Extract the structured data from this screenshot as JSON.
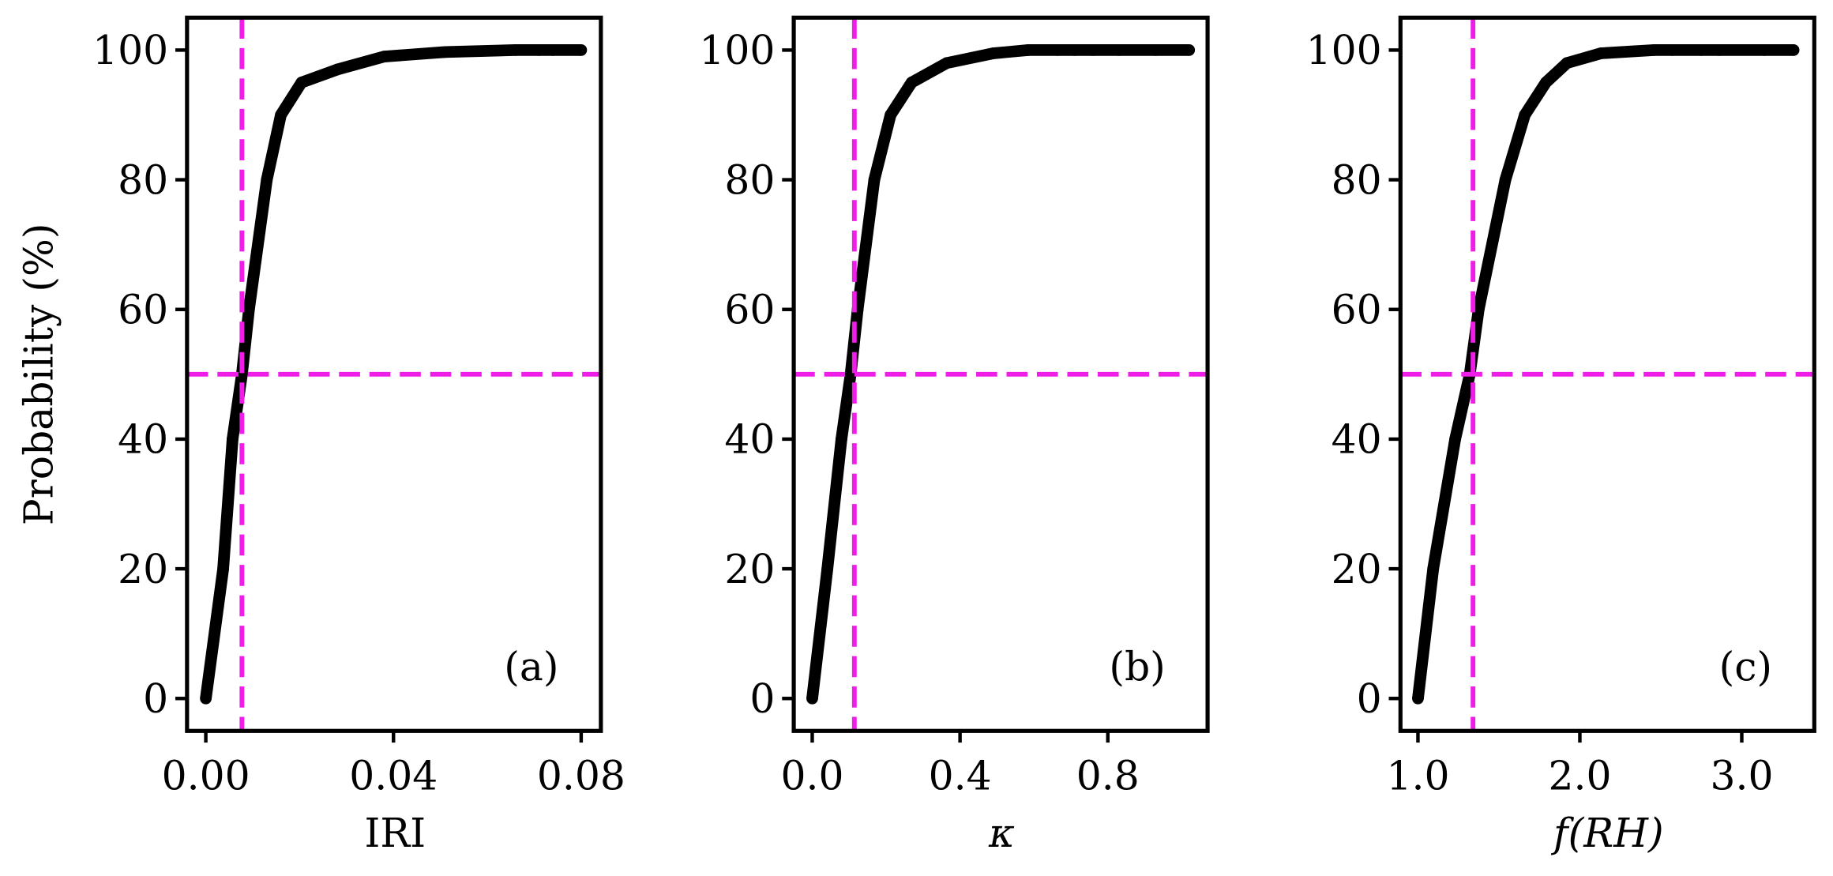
{
  "chart_data": [
    {
      "type": "scatter",
      "xlabel": "IRI",
      "ylabel": "Probability (%)",
      "annotation": "(a)",
      "color": "#000000",
      "ref_color": "#ee1ee8",
      "x": [
        0.0,
        0.0037,
        0.0057,
        0.0077,
        0.0092,
        0.013,
        0.016,
        0.0204,
        0.028,
        0.038,
        0.051,
        0.066,
        0.071,
        0.074,
        0.08
      ],
      "values": [
        0,
        20,
        40,
        50,
        60,
        80,
        90,
        95,
        97,
        99,
        99.7,
        100,
        100,
        100,
        100
      ],
      "xlim": [
        -0.004,
        0.0842
      ],
      "ylim": [
        -5,
        105
      ],
      "xticks": [
        {
          "value": 0,
          "label": "0.00"
        },
        {
          "value": 0.04,
          "label": "0.04"
        },
        {
          "value": 0.08,
          "label": "0.08"
        }
      ],
      "yticks": [
        0,
        20,
        40,
        60,
        80,
        100
      ],
      "reference_lines": {
        "x": 0.0077,
        "y": 50
      }
    },
    {
      "type": "scatter",
      "xlabel": "κ",
      "annotation": "(b)",
      "color": "#000000",
      "ref_color": "#ee1ee8",
      "x": [
        0.0,
        0.041,
        0.079,
        0.104,
        0.123,
        0.168,
        0.212,
        0.269,
        0.364,
        0.49,
        0.585,
        0.664,
        0.71,
        0.76,
        0.83,
        0.93,
        1.02
      ],
      "values": [
        0,
        20,
        40,
        50,
        60,
        80,
        90,
        95,
        98,
        99.5,
        100,
        100,
        100,
        100,
        100,
        100,
        100
      ],
      "xlim": [
        -0.05,
        1.07
      ],
      "ylim": [
        -5,
        105
      ],
      "xticks": [
        {
          "value": 0,
          "label": "0.0"
        },
        0.4,
        0.8
      ],
      "yticks": [
        0,
        20,
        40,
        60,
        80,
        100
      ],
      "reference_lines": {
        "x": 0.114,
        "y": 50
      }
    },
    {
      "type": "scatter",
      "xlabel": "f(RH)",
      "annotation": "(c)",
      "color": "#000000",
      "ref_color": "#ee1ee8",
      "x": [
        1.0,
        1.094,
        1.23,
        1.32,
        1.375,
        1.54,
        1.66,
        1.79,
        1.92,
        2.13,
        2.46,
        2.57,
        2.75,
        2.86,
        3.14,
        3.32
      ],
      "values": [
        0,
        20,
        40,
        50,
        60,
        80,
        90,
        95,
        98,
        99.5,
        100,
        100,
        100,
        100,
        100,
        100
      ],
      "xlim": [
        0.892,
        3.448
      ],
      "ylim": [
        -5,
        105
      ],
      "xticks": [
        {
          "value": 1,
          "label": "1.0"
        },
        {
          "value": 2,
          "label": "2.0"
        },
        {
          "value": 3,
          "label": "3.0"
        }
      ],
      "yticks": [
        0,
        20,
        40,
        60,
        80,
        100
      ],
      "reference_lines": {
        "x": 1.34,
        "y": 50
      }
    }
  ]
}
